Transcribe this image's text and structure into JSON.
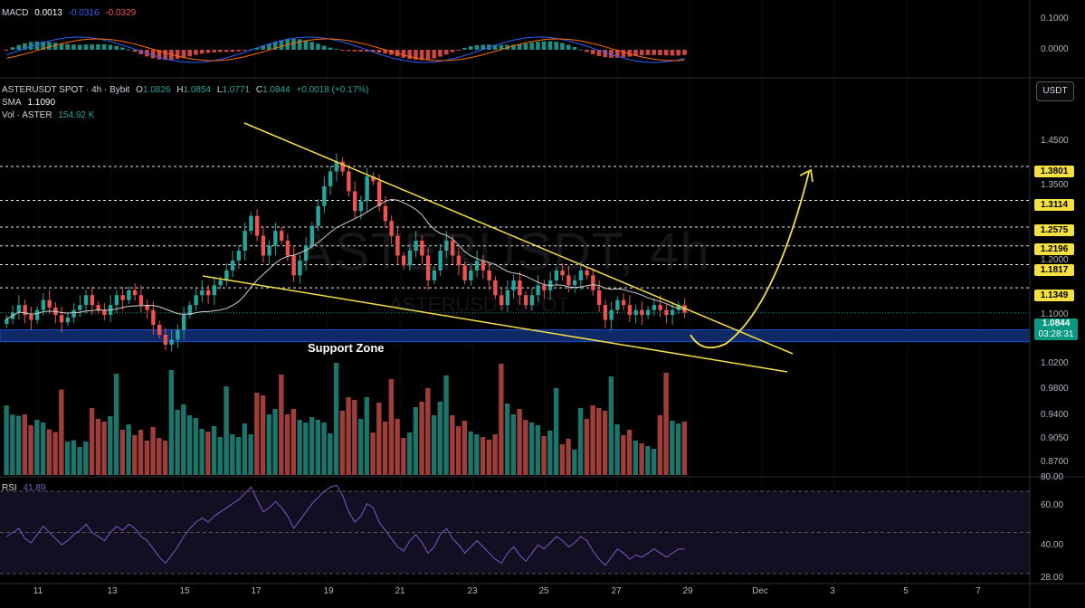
{
  "colors": {
    "bg": "#000000",
    "up": "#26a69a",
    "down": "#ef5350",
    "trend": "#f5e042",
    "support": "#0f2a66",
    "sma": "#cfcfcf",
    "rsi": "#7e57c2",
    "macd": "#2962ff",
    "signal": "#ff6d00"
  },
  "macd": {
    "label": "MACD",
    "v1": "0.0013",
    "v2": "-0.0316",
    "v3": "-0.0329",
    "axis": [
      "0.1000",
      "0.0000"
    ]
  },
  "main": {
    "symbol": "ASTERUSDT SPOT · 4h · Bybit",
    "o_label": "O",
    "o": "1.0826",
    "h_label": "H",
    "h": "1.0854",
    "l_label": "L",
    "l": "1.0771",
    "c_label": "C",
    "c": "1.0844",
    "chg": "+0.0018 (+0.17%)",
    "sma_label": "SMA",
    "sma_value": "1.1090",
    "vol_label": "Vol · ASTER",
    "vol_value": "154.92 K",
    "currency": "USDT",
    "watermark_big": "ASTERUSDT, 4h",
    "watermark_small": "ASTERUSDT SPOT",
    "support_label": "Support Zone",
    "axis": [
      "1.4500",
      "1.3500",
      "1.2000",
      "1.1000",
      "1.0200",
      "0.9800",
      "0.9400",
      "0.9050",
      "0.8700"
    ],
    "levels": [
      "1.3801",
      "1.3114",
      "1.2575",
      "1.2196",
      "1.1817",
      "1.1349"
    ],
    "current_price": "1.0844",
    "countdown": "03:28:31"
  },
  "rsi": {
    "label": "RSI",
    "value": "41.89",
    "axis": [
      "80.00",
      "60.00",
      "40.00",
      "28.00"
    ]
  },
  "xaxis": [
    "11",
    "13",
    "15",
    "17",
    "19",
    "21",
    "23",
    "25",
    "27",
    "29",
    "Dec",
    "3",
    "5",
    "7"
  ],
  "chart_data": {
    "type": "candlestick",
    "ylabel": "USDT",
    "horizontal_levels": [
      1.3801,
      1.3114,
      1.2575,
      1.2196,
      1.1817,
      1.1349
    ],
    "support_zone": [
      1.026,
      1.05
    ],
    "current_price": 1.0844,
    "close": [
      1.072,
      1.085,
      1.1,
      1.08,
      1.07,
      1.09,
      1.11,
      1.095,
      1.08,
      1.065,
      1.075,
      1.09,
      1.1,
      1.12,
      1.1,
      1.09,
      1.08,
      1.1,
      1.12,
      1.11,
      1.13,
      1.12,
      1.1,
      1.09,
      1.06,
      1.04,
      1.02,
      1.03,
      1.05,
      1.08,
      1.1,
      1.12,
      1.13,
      1.12,
      1.14,
      1.15,
      1.17,
      1.19,
      1.21,
      1.25,
      1.28,
      1.24,
      1.2,
      1.22,
      1.25,
      1.23,
      1.2,
      1.16,
      1.19,
      1.22,
      1.26,
      1.3,
      1.34,
      1.37,
      1.39,
      1.37,
      1.33,
      1.29,
      1.31,
      1.36,
      1.35,
      1.3,
      1.27,
      1.24,
      1.2,
      1.18,
      1.21,
      1.23,
      1.2,
      1.15,
      1.17,
      1.21,
      1.23,
      1.2,
      1.18,
      1.15,
      1.17,
      1.19,
      1.17,
      1.15,
      1.12,
      1.1,
      1.13,
      1.15,
      1.12,
      1.1,
      1.12,
      1.14,
      1.13,
      1.15,
      1.17,
      1.16,
      1.14,
      1.15,
      1.17,
      1.16,
      1.13,
      1.1,
      1.07,
      1.09,
      1.11,
      1.1,
      1.08,
      1.09,
      1.08,
      1.09,
      1.1,
      1.09,
      1.08,
      1.09,
      1.1,
      1.0844
    ],
    "volume_scale": "relative",
    "rsi_values": [
      48,
      50,
      52,
      47,
      45,
      49,
      53,
      50,
      47,
      44,
      46,
      49,
      51,
      54,
      50,
      48,
      46,
      50,
      53,
      51,
      54,
      52,
      48,
      46,
      42,
      38,
      35,
      39,
      43,
      48,
      52,
      55,
      57,
      55,
      58,
      60,
      62,
      64,
      66,
      69,
      72,
      66,
      60,
      62,
      65,
      62,
      58,
      52,
      56,
      60,
      64,
      67,
      70,
      72,
      73,
      68,
      60,
      55,
      58,
      64,
      62,
      55,
      51,
      47,
      43,
      41,
      46,
      49,
      45,
      40,
      43,
      49,
      52,
      47,
      44,
      40,
      43,
      46,
      43,
      40,
      37,
      35,
      40,
      43,
      39,
      36,
      40,
      44,
      42,
      45,
      48,
      46,
      43,
      45,
      48,
      46,
      41,
      37,
      34,
      38,
      42,
      40,
      37,
      39,
      38,
      40,
      42,
      40,
      38,
      40,
      42,
      41.89
    ],
    "trend_lines": "descending wedge with projected breakout arrow"
  }
}
